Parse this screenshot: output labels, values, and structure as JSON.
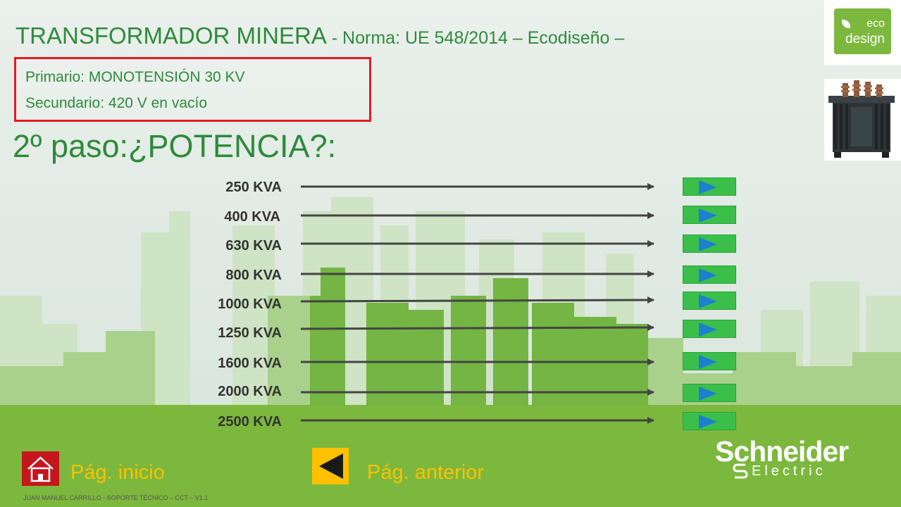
{
  "title": {
    "main": "TRANSFORMADOR MINERA",
    "subtitle": " - Norma: UE 548/2014 – Ecodiseño –"
  },
  "specs": {
    "primary": "Primario: MONOTENSIÓN 30 KV",
    "secondary": "Secundario: 420 V en vacío"
  },
  "step_heading": "2º paso:¿POTENCIA?:",
  "power_options": [
    {
      "label": "250 KVA"
    },
    {
      "label": "400 KVA"
    },
    {
      "label": "630 KVA"
    },
    {
      "label": "800 KVA"
    },
    {
      "label": "1000 KVA"
    },
    {
      "label": "1250 KVA"
    },
    {
      "label": "1600 KVA"
    },
    {
      "label": "2000 KVA"
    },
    {
      "label": "2500 KVA"
    }
  ],
  "eco_logo": {
    "line1": "eco",
    "line2": "design"
  },
  "nav": {
    "home_label": "Pág. inicio",
    "prev_label": "Pág. anterior"
  },
  "footer": "JUAN MANUEL CARRILLO - SOPORTE TÉCNICO – CCT – V1.1",
  "brand": {
    "name": "Schneider",
    "sub": "Electric"
  },
  "colors": {
    "title_green": "#2e8a3a",
    "accent_red": "#e31b23",
    "nav_yellow": "#ffc000",
    "button_green": "#3bbf4a",
    "play_blue": "#1d7fd0",
    "ground_green": "#7cb83d"
  },
  "icons": {
    "home": "home-icon",
    "prev": "triangle-left-icon",
    "play": "play-icon"
  }
}
